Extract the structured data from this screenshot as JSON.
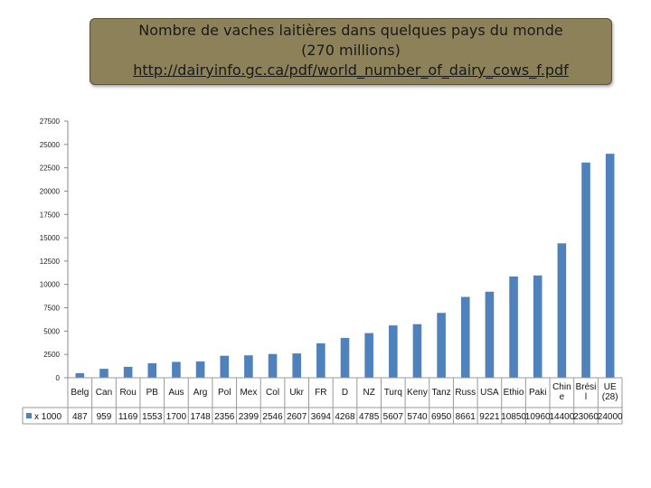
{
  "title": {
    "line1": "Nombre de vaches laitières dans quelques pays du monde",
    "line2": "(270 millions)",
    "link": "http://dairyinfo.gc.ca/pdf/world_number_of_dairy_cows_f.pdf"
  },
  "colors": {
    "bar": "#4f81bd",
    "title_box": "#8c8159"
  },
  "chart_data": {
    "type": "bar",
    "categories": [
      [
        "Belg"
      ],
      [
        "Can"
      ],
      [
        "Rou"
      ],
      [
        "PB"
      ],
      [
        "Aus"
      ],
      [
        "Arg"
      ],
      [
        "Pol"
      ],
      [
        "Mex"
      ],
      [
        "Col"
      ],
      [
        "Ukr"
      ],
      [
        "FR"
      ],
      [
        "D"
      ],
      [
        "NZ"
      ],
      [
        "Turq"
      ],
      [
        "Keny"
      ],
      [
        "Tanz"
      ],
      [
        "Russ"
      ],
      [
        "USA"
      ],
      [
        "Ethio"
      ],
      [
        "Paki"
      ],
      [
        "Chin",
        "e"
      ],
      [
        "Brési",
        "l"
      ],
      [
        "UE",
        "(28)"
      ]
    ],
    "series": [
      {
        "name": "x 1000",
        "values": [
          487,
          959,
          1169,
          1553,
          1700,
          1748,
          2356,
          2399,
          2546,
          2607,
          3694,
          4268,
          4785,
          5607,
          5740,
          6950,
          8661,
          9221,
          10850,
          10960,
          14400,
          23060,
          24000
        ],
        "labels": [
          "487",
          "959",
          "1169",
          "1553",
          "1700",
          "1748",
          "2356",
          "2399",
          "2546",
          "2607",
          "3694",
          "4268",
          "4785",
          "5607",
          "5740",
          "6950",
          "8661",
          "9221",
          "10850",
          "10960",
          "14400",
          "23060",
          "24000"
        ]
      }
    ],
    "yticks": [
      0,
      2500,
      5000,
      7500,
      10000,
      12500,
      15000,
      17500,
      20000,
      22500,
      25000,
      27500
    ],
    "ytick_labels": [
      "0",
      "2500",
      "5000",
      "7500",
      "10000",
      "12500",
      "15000",
      "17500",
      "20000",
      "22500",
      "25000",
      "27500"
    ],
    "ylim": [
      0,
      27500
    ],
    "grid": false,
    "legend": "data-table-left"
  }
}
